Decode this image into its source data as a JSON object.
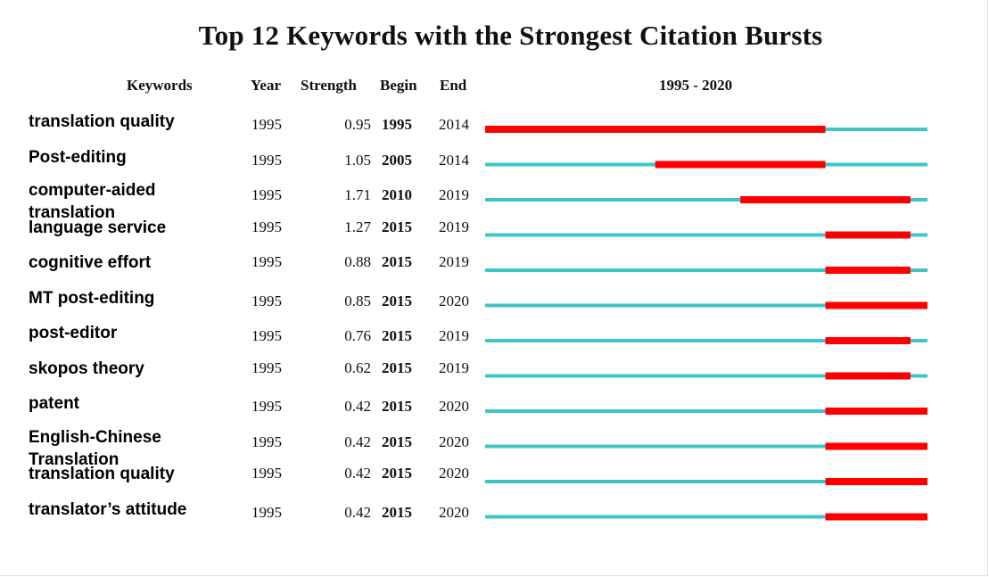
{
  "colors": {
    "baseline": "#40c4c4",
    "burst": "#ff0000"
  },
  "chart_data": {
    "type": "table",
    "title": "Top 12 Keywords with the Strongest Citation Bursts",
    "columns": [
      "Keywords",
      "Year",
      "Strength",
      "Begin",
      "End"
    ],
    "range_label": "1995 - 2020",
    "timeline": [
      1995,
      2020
    ],
    "rows": [
      {
        "keyword": "translation quality",
        "year": "1995",
        "strength": "0.95",
        "begin": "1995",
        "end": "2014"
      },
      {
        "keyword": "Post-editing",
        "year": "1995",
        "strength": "1.05",
        "begin": "2005",
        "end": "2014"
      },
      {
        "keyword": "computer-aided translation",
        "year": "1995",
        "strength": "1.71",
        "begin": "2010",
        "end": "2019"
      },
      {
        "keyword": "language service",
        "year": "1995",
        "strength": "1.27",
        "begin": "2015",
        "end": "2019"
      },
      {
        "keyword": "cognitive effort",
        "year": "1995",
        "strength": "0.88",
        "begin": "2015",
        "end": "2019"
      },
      {
        "keyword": "MT post-editing",
        "year": "1995",
        "strength": "0.85",
        "begin": "2015",
        "end": "2020"
      },
      {
        "keyword": "post-editor",
        "year": "1995",
        "strength": "0.76",
        "begin": "2015",
        "end": "2019"
      },
      {
        "keyword": "skopos theory",
        "year": "1995",
        "strength": "0.62",
        "begin": "2015",
        "end": "2019"
      },
      {
        "keyword": "patent",
        "year": "1995",
        "strength": "0.42",
        "begin": "2015",
        "end": "2020"
      },
      {
        "keyword": "English-Chinese Translation",
        "year": "1995",
        "strength": "0.42",
        "begin": "2015",
        "end": "2020"
      },
      {
        "keyword": "translation quality",
        "year": "1995",
        "strength": "0.42",
        "begin": "2015",
        "end": "2020"
      },
      {
        "keyword": "translator’s attitude",
        "year": "1995",
        "strength": "0.42",
        "begin": "2015",
        "end": "2020"
      }
    ]
  }
}
